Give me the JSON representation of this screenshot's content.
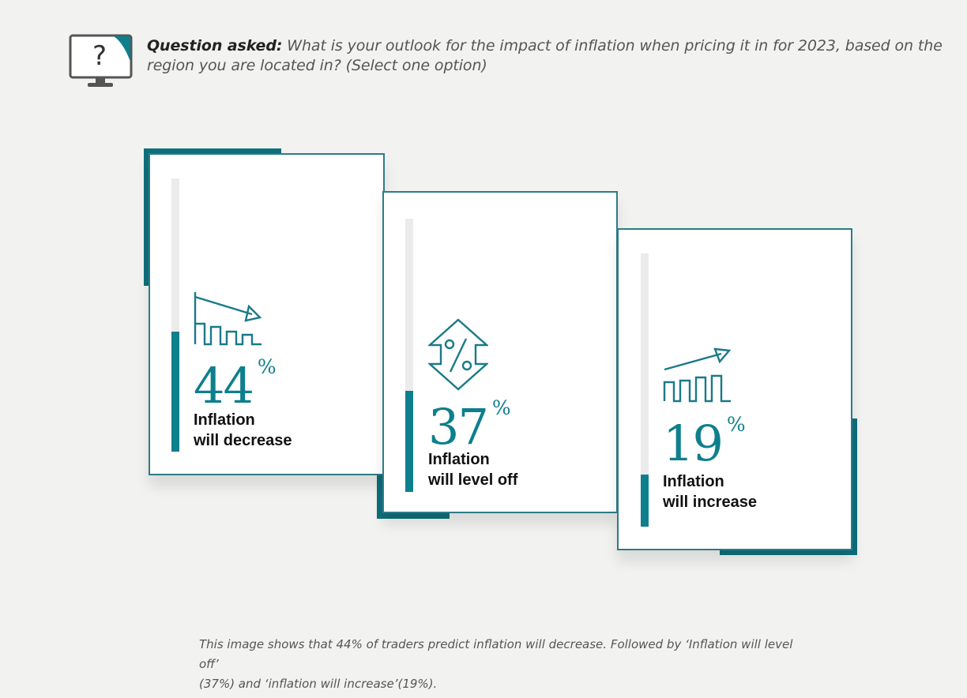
{
  "question": {
    "lead": "Question asked:",
    "text": " What is your outlook for the impact of inflation when pricing it in for 2023, based on the region you are located in? (Select one option)"
  },
  "chart_data": {
    "type": "bar",
    "categories": [
      "Inflation will decrease",
      "Inflation will level off",
      "Inflation will increase"
    ],
    "values": [
      44,
      37,
      19
    ],
    "unit": "%",
    "colors": {
      "fill": "#0e7f8c",
      "track": "#ebebeb",
      "accent": "#0e6f7c"
    }
  },
  "cards": [
    {
      "value": "44",
      "percent": "%",
      "label_line1": "Inflation",
      "label_line2": "will decrease",
      "icon": "chart-down-icon"
    },
    {
      "value": "37",
      "percent": "%",
      "label_line1": "Inflation",
      "label_line2": "will level off",
      "icon": "percent-up-down-icon"
    },
    {
      "value": "19",
      "percent": "%",
      "label_line1": "Inflation",
      "label_line2": "will increase",
      "icon": "chart-up-icon"
    }
  ],
  "caption": {
    "line1": "This image shows that 44% of traders predict inflation will decrease. Followed by ‘Inflation will level off’",
    "line2": "(37%) and ‘inflation will increase’(19%)."
  }
}
